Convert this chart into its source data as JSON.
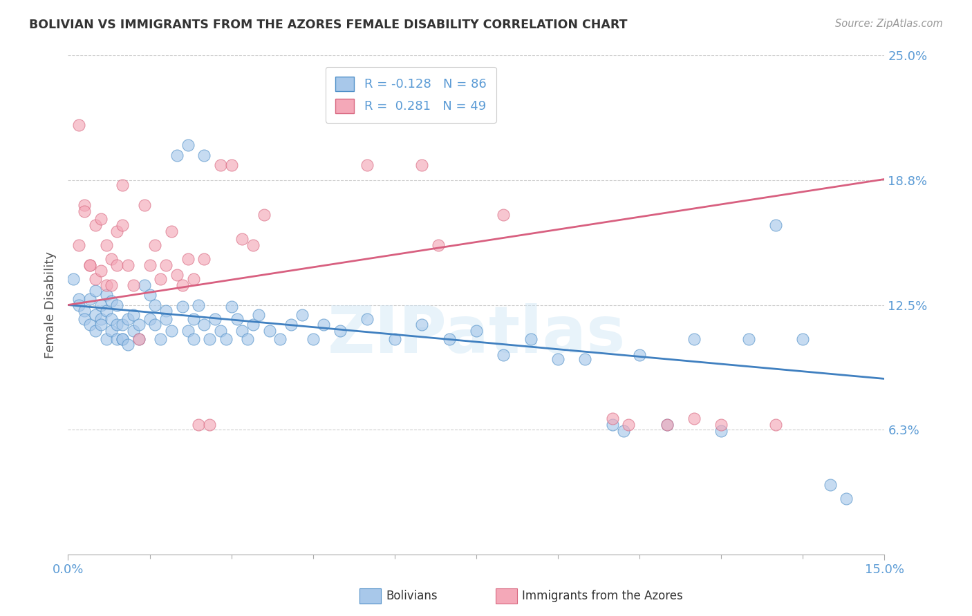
{
  "title": "BOLIVIAN VS IMMIGRANTS FROM THE AZORES FEMALE DISABILITY CORRELATION CHART",
  "source": "Source: ZipAtlas.com",
  "ylabel": "Female Disability",
  "watermark": "ZIPatlas",
  "xmin": 0.0,
  "xmax": 0.15,
  "ymin": 0.0,
  "ymax": 0.25,
  "ytick_vals": [
    0.0625,
    0.125,
    0.1875,
    0.25
  ],
  "ytick_labels": [
    "6.3%",
    "12.5%",
    "18.8%",
    "25.0%"
  ],
  "xtick_vals": [
    0.0,
    0.15
  ],
  "xtick_labels": [
    "0.0%",
    "15.0%"
  ],
  "xtick_minor": [
    0.015,
    0.03,
    0.045,
    0.06,
    0.075,
    0.09,
    0.105,
    0.12,
    0.135
  ],
  "grid_color": "#cccccc",
  "legend_blue_label": "Bolivians",
  "legend_pink_label": "Immigrants from the Azores",
  "legend_blue_r": "-0.128",
  "legend_blue_n": "86",
  "legend_pink_r": " 0.281",
  "legend_pink_n": "49",
  "blue_fill": "#a8c8ea",
  "blue_edge": "#5090c8",
  "pink_fill": "#f4a8b8",
  "pink_edge": "#d86880",
  "blue_line": "#4080c0",
  "pink_line": "#d86080",
  "title_color": "#333333",
  "ylabel_color": "#555555",
  "tick_color": "#5B9BD5",
  "source_color": "#999999",
  "blue_scatter": [
    [
      0.001,
      0.138
    ],
    [
      0.002,
      0.128
    ],
    [
      0.002,
      0.125
    ],
    [
      0.003,
      0.122
    ],
    [
      0.003,
      0.118
    ],
    [
      0.004,
      0.128
    ],
    [
      0.004,
      0.115
    ],
    [
      0.005,
      0.12
    ],
    [
      0.005,
      0.112
    ],
    [
      0.005,
      0.132
    ],
    [
      0.006,
      0.118
    ],
    [
      0.006,
      0.125
    ],
    [
      0.006,
      0.115
    ],
    [
      0.007,
      0.108
    ],
    [
      0.007,
      0.122
    ],
    [
      0.007,
      0.13
    ],
    [
      0.008,
      0.118
    ],
    [
      0.008,
      0.127
    ],
    [
      0.008,
      0.112
    ],
    [
      0.009,
      0.108
    ],
    [
      0.009,
      0.115
    ],
    [
      0.009,
      0.125
    ],
    [
      0.01,
      0.108
    ],
    [
      0.01,
      0.115
    ],
    [
      0.01,
      0.108
    ],
    [
      0.011,
      0.118
    ],
    [
      0.011,
      0.105
    ],
    [
      0.012,
      0.112
    ],
    [
      0.012,
      0.12
    ],
    [
      0.013,
      0.108
    ],
    [
      0.013,
      0.115
    ],
    [
      0.014,
      0.135
    ],
    [
      0.015,
      0.13
    ],
    [
      0.015,
      0.118
    ],
    [
      0.016,
      0.125
    ],
    [
      0.016,
      0.115
    ],
    [
      0.017,
      0.108
    ],
    [
      0.018,
      0.122
    ],
    [
      0.018,
      0.118
    ],
    [
      0.019,
      0.112
    ],
    [
      0.02,
      0.2
    ],
    [
      0.021,
      0.124
    ],
    [
      0.022,
      0.112
    ],
    [
      0.023,
      0.108
    ],
    [
      0.023,
      0.118
    ],
    [
      0.024,
      0.125
    ],
    [
      0.025,
      0.115
    ],
    [
      0.026,
      0.108
    ],
    [
      0.027,
      0.118
    ],
    [
      0.028,
      0.112
    ],
    [
      0.029,
      0.108
    ],
    [
      0.03,
      0.124
    ],
    [
      0.031,
      0.118
    ],
    [
      0.032,
      0.112
    ],
    [
      0.033,
      0.108
    ],
    [
      0.034,
      0.115
    ],
    [
      0.035,
      0.12
    ],
    [
      0.037,
      0.112
    ],
    [
      0.039,
      0.108
    ],
    [
      0.041,
      0.115
    ],
    [
      0.043,
      0.12
    ],
    [
      0.045,
      0.108
    ],
    [
      0.047,
      0.115
    ],
    [
      0.05,
      0.112
    ],
    [
      0.055,
      0.118
    ],
    [
      0.06,
      0.108
    ],
    [
      0.065,
      0.115
    ],
    [
      0.07,
      0.108
    ],
    [
      0.075,
      0.112
    ],
    [
      0.08,
      0.1
    ],
    [
      0.085,
      0.108
    ],
    [
      0.09,
      0.098
    ],
    [
      0.095,
      0.098
    ],
    [
      0.1,
      0.065
    ],
    [
      0.102,
      0.062
    ],
    [
      0.105,
      0.1
    ],
    [
      0.11,
      0.065
    ],
    [
      0.115,
      0.108
    ],
    [
      0.12,
      0.062
    ],
    [
      0.125,
      0.108
    ],
    [
      0.13,
      0.165
    ],
    [
      0.135,
      0.108
    ],
    [
      0.14,
      0.035
    ],
    [
      0.143,
      0.028
    ],
    [
      0.022,
      0.205
    ],
    [
      0.025,
      0.2
    ]
  ],
  "pink_scatter": [
    [
      0.002,
      0.155
    ],
    [
      0.002,
      0.215
    ],
    [
      0.003,
      0.175
    ],
    [
      0.003,
      0.172
    ],
    [
      0.004,
      0.145
    ],
    [
      0.004,
      0.145
    ],
    [
      0.005,
      0.138
    ],
    [
      0.005,
      0.165
    ],
    [
      0.006,
      0.142
    ],
    [
      0.006,
      0.168
    ],
    [
      0.007,
      0.135
    ],
    [
      0.007,
      0.155
    ],
    [
      0.008,
      0.148
    ],
    [
      0.008,
      0.135
    ],
    [
      0.009,
      0.162
    ],
    [
      0.009,
      0.145
    ],
    [
      0.01,
      0.185
    ],
    [
      0.01,
      0.165
    ],
    [
      0.011,
      0.145
    ],
    [
      0.012,
      0.135
    ],
    [
      0.013,
      0.108
    ],
    [
      0.014,
      0.175
    ],
    [
      0.015,
      0.145
    ],
    [
      0.016,
      0.155
    ],
    [
      0.017,
      0.138
    ],
    [
      0.018,
      0.145
    ],
    [
      0.019,
      0.162
    ],
    [
      0.02,
      0.14
    ],
    [
      0.021,
      0.135
    ],
    [
      0.022,
      0.148
    ],
    [
      0.023,
      0.138
    ],
    [
      0.024,
      0.065
    ],
    [
      0.025,
      0.148
    ],
    [
      0.026,
      0.065
    ],
    [
      0.028,
      0.195
    ],
    [
      0.03,
      0.195
    ],
    [
      0.032,
      0.158
    ],
    [
      0.034,
      0.155
    ],
    [
      0.036,
      0.17
    ],
    [
      0.055,
      0.195
    ],
    [
      0.065,
      0.195
    ],
    [
      0.068,
      0.155
    ],
    [
      0.08,
      0.17
    ],
    [
      0.1,
      0.068
    ],
    [
      0.103,
      0.065
    ],
    [
      0.11,
      0.065
    ],
    [
      0.115,
      0.068
    ],
    [
      0.12,
      0.065
    ],
    [
      0.13,
      0.065
    ]
  ],
  "blue_trend_x": [
    0.0,
    0.15
  ],
  "blue_trend_y": [
    0.125,
    0.088
  ],
  "pink_trend_x": [
    0.0,
    0.15
  ],
  "pink_trend_y": [
    0.125,
    0.188
  ]
}
